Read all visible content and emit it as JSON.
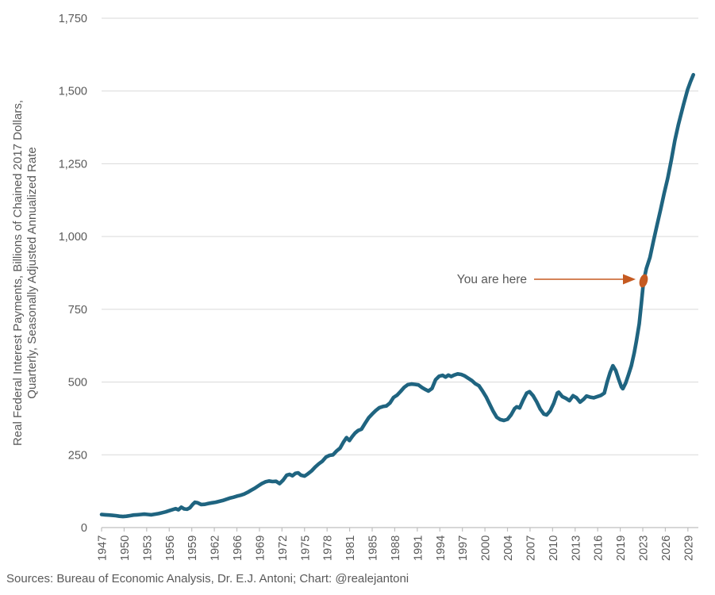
{
  "source": "Sources: Bureau of Economic Analysis, Dr. E.J. Antoni; Chart: @realejantoni",
  "chart_data": {
    "type": "line",
    "title": "",
    "xlabel": "",
    "ylabel_line1": "Real Federal Interest Payments, Billions of Chained 2017 Dollars,",
    "ylabel_line2": "Quarterly, Seasonally Adjusted Annualized Rate",
    "series_name": "Real Federal Interest Payments",
    "ylim": [
      0,
      1750
    ],
    "xlim": [
      1947,
      2030.8
    ],
    "grid": "horizontal",
    "legend_position": "none",
    "y_ticks": {
      "values": [
        0,
        250,
        500,
        750,
        1000,
        1250,
        1500,
        1750
      ],
      "labels": [
        "0",
        "250",
        "500",
        "750",
        "1,000",
        "1,250",
        "1,500",
        "1,750"
      ]
    },
    "x_ticks": {
      "interval_months": 38,
      "labels": [
        "1947",
        "1950",
        "1953",
        "1956",
        "1959",
        "1962",
        "1966",
        "1969",
        "1972",
        "1975",
        "1978",
        "1981",
        "1985",
        "1988",
        "1991",
        "1994",
        "1997",
        "2000",
        "2004",
        "2007",
        "2010",
        "2013",
        "2016",
        "2019",
        "2023",
        "2026",
        "2029"
      ]
    },
    "annotation": {
      "text": "You are here",
      "x": 2023.1,
      "y": 845
    },
    "colors": {
      "line": "#1f6480",
      "annotation": "#c55a21",
      "grid": "#d9d9d9",
      "axis": "#bfbfbf",
      "text": "#595959"
    },
    "points": [
      [
        1947.0,
        45
      ],
      [
        1947.5,
        44
      ],
      [
        1948.0,
        43
      ],
      [
        1948.5,
        42
      ],
      [
        1949.0,
        41
      ],
      [
        1949.5,
        39
      ],
      [
        1950.0,
        38
      ],
      [
        1950.5,
        39
      ],
      [
        1951.0,
        41
      ],
      [
        1951.5,
        43
      ],
      [
        1952.0,
        44
      ],
      [
        1952.5,
        45
      ],
      [
        1953.0,
        46
      ],
      [
        1953.5,
        45
      ],
      [
        1954.0,
        44
      ],
      [
        1954.5,
        46
      ],
      [
        1955.0,
        48
      ],
      [
        1955.5,
        51
      ],
      [
        1956.0,
        54
      ],
      [
        1956.5,
        58
      ],
      [
        1957.0,
        62
      ],
      [
        1957.4,
        65
      ],
      [
        1957.8,
        61
      ],
      [
        1958.2,
        70
      ],
      [
        1958.6,
        64
      ],
      [
        1959.0,
        63
      ],
      [
        1959.4,
        68
      ],
      [
        1959.8,
        80
      ],
      [
        1960.1,
        87
      ],
      [
        1960.5,
        85
      ],
      [
        1961.0,
        79
      ],
      [
        1961.5,
        80
      ],
      [
        1962.0,
        83
      ],
      [
        1962.5,
        85
      ],
      [
        1963.0,
        87
      ],
      [
        1963.5,
        90
      ],
      [
        1964.0,
        93
      ],
      [
        1964.5,
        97
      ],
      [
        1965.0,
        101
      ],
      [
        1965.5,
        104
      ],
      [
        1966.0,
        108
      ],
      [
        1966.5,
        111
      ],
      [
        1967.0,
        115
      ],
      [
        1967.5,
        121
      ],
      [
        1968.0,
        128
      ],
      [
        1968.5,
        135
      ],
      [
        1969.0,
        143
      ],
      [
        1969.5,
        151
      ],
      [
        1970.0,
        157
      ],
      [
        1970.5,
        160
      ],
      [
        1971.0,
        158
      ],
      [
        1971.5,
        159
      ],
      [
        1972.0,
        151
      ],
      [
        1972.5,
        163
      ],
      [
        1973.0,
        180
      ],
      [
        1973.4,
        183
      ],
      [
        1973.8,
        178
      ],
      [
        1974.2,
        186
      ],
      [
        1974.6,
        188
      ],
      [
        1975.0,
        180
      ],
      [
        1975.5,
        177
      ],
      [
        1976.0,
        185
      ],
      [
        1976.5,
        195
      ],
      [
        1977.0,
        208
      ],
      [
        1977.5,
        219
      ],
      [
        1978.0,
        228
      ],
      [
        1978.5,
        242
      ],
      [
        1979.0,
        248
      ],
      [
        1979.5,
        250
      ],
      [
        1980.0,
        263
      ],
      [
        1980.5,
        273
      ],
      [
        1981.0,
        295
      ],
      [
        1981.4,
        309
      ],
      [
        1981.8,
        299
      ],
      [
        1982.2,
        313
      ],
      [
        1982.6,
        325
      ],
      [
        1983.0,
        333
      ],
      [
        1983.5,
        338
      ],
      [
        1984.0,
        358
      ],
      [
        1984.5,
        377
      ],
      [
        1985.0,
        390
      ],
      [
        1985.5,
        402
      ],
      [
        1986.0,
        412
      ],
      [
        1986.5,
        416
      ],
      [
        1987.0,
        418
      ],
      [
        1987.5,
        428
      ],
      [
        1988.0,
        447
      ],
      [
        1988.5,
        455
      ],
      [
        1989.0,
        468
      ],
      [
        1989.5,
        482
      ],
      [
        1990.0,
        491
      ],
      [
        1990.5,
        493
      ],
      [
        1991.0,
        492
      ],
      [
        1991.5,
        490
      ],
      [
        1992.0,
        481
      ],
      [
        1992.5,
        474
      ],
      [
        1992.9,
        469
      ],
      [
        1993.4,
        478
      ],
      [
        1993.9,
        508
      ],
      [
        1994.4,
        520
      ],
      [
        1994.9,
        523
      ],
      [
        1995.3,
        517
      ],
      [
        1995.7,
        524
      ],
      [
        1996.1,
        519
      ],
      [
        1996.5,
        524
      ],
      [
        1997.0,
        528
      ],
      [
        1997.5,
        526
      ],
      [
        1998.0,
        521
      ],
      [
        1998.5,
        513
      ],
      [
        1999.0,
        505
      ],
      [
        1999.5,
        494
      ],
      [
        2000.0,
        487
      ],
      [
        2000.5,
        469
      ],
      [
        2001.0,
        449
      ],
      [
        2001.5,
        424
      ],
      [
        2002.0,
        399
      ],
      [
        2002.5,
        379
      ],
      [
        2003.0,
        371
      ],
      [
        2003.5,
        368
      ],
      [
        2004.0,
        372
      ],
      [
        2004.5,
        387
      ],
      [
        2005.0,
        409
      ],
      [
        2005.3,
        415
      ],
      [
        2005.7,
        411
      ],
      [
        2006.2,
        438
      ],
      [
        2006.7,
        462
      ],
      [
        2007.1,
        467
      ],
      [
        2007.6,
        453
      ],
      [
        2008.1,
        432
      ],
      [
        2008.6,
        407
      ],
      [
        2009.1,
        390
      ],
      [
        2009.5,
        387
      ],
      [
        2010.0,
        401
      ],
      [
        2010.5,
        427
      ],
      [
        2011.0,
        462
      ],
      [
        2011.2,
        465
      ],
      [
        2011.7,
        450
      ],
      [
        2012.2,
        444
      ],
      [
        2012.7,
        436
      ],
      [
        2013.2,
        453
      ],
      [
        2013.7,
        446
      ],
      [
        2014.2,
        431
      ],
      [
        2014.7,
        441
      ],
      [
        2015.1,
        452
      ],
      [
        2015.6,
        448
      ],
      [
        2016.1,
        446
      ],
      [
        2016.6,
        450
      ],
      [
        2017.1,
        454
      ],
      [
        2017.6,
        462
      ],
      [
        2018.0,
        500
      ],
      [
        2018.4,
        532
      ],
      [
        2018.8,
        556
      ],
      [
        2019.2,
        540
      ],
      [
        2019.6,
        510
      ],
      [
        2020.0,
        483
      ],
      [
        2020.2,
        477
      ],
      [
        2020.6,
        497
      ],
      [
        2021.0,
        526
      ],
      [
        2021.4,
        556
      ],
      [
        2021.8,
        600
      ],
      [
        2022.1,
        640
      ],
      [
        2022.5,
        700
      ],
      [
        2022.8,
        770
      ],
      [
        2023.1,
        845
      ],
      [
        2023.5,
        890
      ],
      [
        2024.0,
        928
      ],
      [
        2024.5,
        985
      ],
      [
        2025.0,
        1040
      ],
      [
        2025.5,
        1092
      ],
      [
        2026.0,
        1148
      ],
      [
        2026.5,
        1200
      ],
      [
        2027.0,
        1262
      ],
      [
        2027.5,
        1330
      ],
      [
        2028.0,
        1385
      ],
      [
        2028.7,
        1452
      ],
      [
        2029.3,
        1505
      ],
      [
        2029.7,
        1532
      ],
      [
        2030.1,
        1556
      ]
    ]
  }
}
